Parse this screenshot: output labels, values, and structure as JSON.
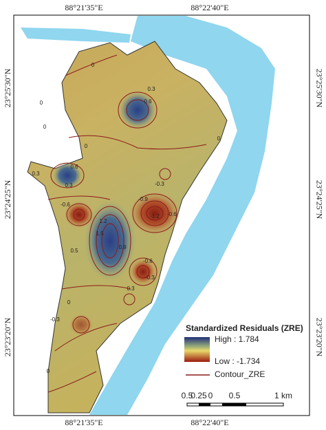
{
  "map": {
    "top_labels": [
      "88°21'35\"E",
      "88°22'40\"E"
    ],
    "bottom_labels": [
      "88°21'35\"E",
      "88°22'40\"E"
    ],
    "left_labels": [
      "23°25'30\"N",
      "23°24'25\"N",
      "23°23'20\"N"
    ],
    "right_labels": [
      "23°25'30\"N",
      "23°24'25\"N",
      "23°23'20\"N"
    ],
    "legend": {
      "title": "Standardized Residuals (ZRE)",
      "high": "High : 1.784",
      "low": "Low : -1.734",
      "contour": "Contour_ZRE"
    },
    "scale": [
      "0.5",
      "0.25",
      "0",
      "0.5",
      "1 km"
    ],
    "contour_labels": [
      "0",
      "0.3",
      "0.6",
      "0",
      "0",
      "0.3",
      "0.6",
      "0",
      "0.3",
      "-0.6",
      "-0.9",
      "-1.2",
      "-0.6",
      "-0.3",
      "1.2",
      "1.5",
      "0.9",
      "0.5",
      "-0.6",
      "-0.3",
      "0.3",
      "0",
      "-0.3",
      "0",
      "0"
    ]
  }
}
